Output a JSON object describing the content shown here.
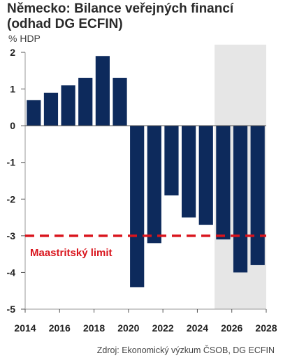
{
  "chart_data": {
    "type": "bar",
    "title": "Německo: Bilance veřejných financí (odhad DG ECFIN)",
    "ylabel": "% HDP",
    "source": "Zdroj: Ekonomický výzkum ČSOB, DG ECFIN",
    "x": [
      2014,
      2015,
      2016,
      2017,
      2018,
      2019,
      2020,
      2021,
      2022,
      2023,
      2024,
      2025,
      2026,
      2027
    ],
    "values": [
      0.7,
      0.9,
      1.1,
      1.3,
      1.9,
      1.3,
      -4.4,
      -3.2,
      -1.9,
      -2.5,
      -2.7,
      -3.1,
      -4.0,
      -3.8
    ],
    "xlim": [
      2014,
      2028
    ],
    "ylim": [
      -5,
      2
    ],
    "xticks": [
      "2014",
      "2016",
      "2018",
      "2020",
      "2022",
      "2024",
      "2026",
      "2028"
    ],
    "yticks": [
      "2",
      "1",
      "0",
      "-1",
      "-2",
      "-3",
      "-4",
      "-5"
    ],
    "reference_line": {
      "value": -3,
      "label": "Maastritský limit",
      "color": "#d9141c",
      "style": "dashed"
    },
    "forecast_shading": {
      "from": 2025,
      "to": 2028,
      "color": "#e6e6e6"
    },
    "bar_color": "#0d2a5c",
    "grid": false
  }
}
